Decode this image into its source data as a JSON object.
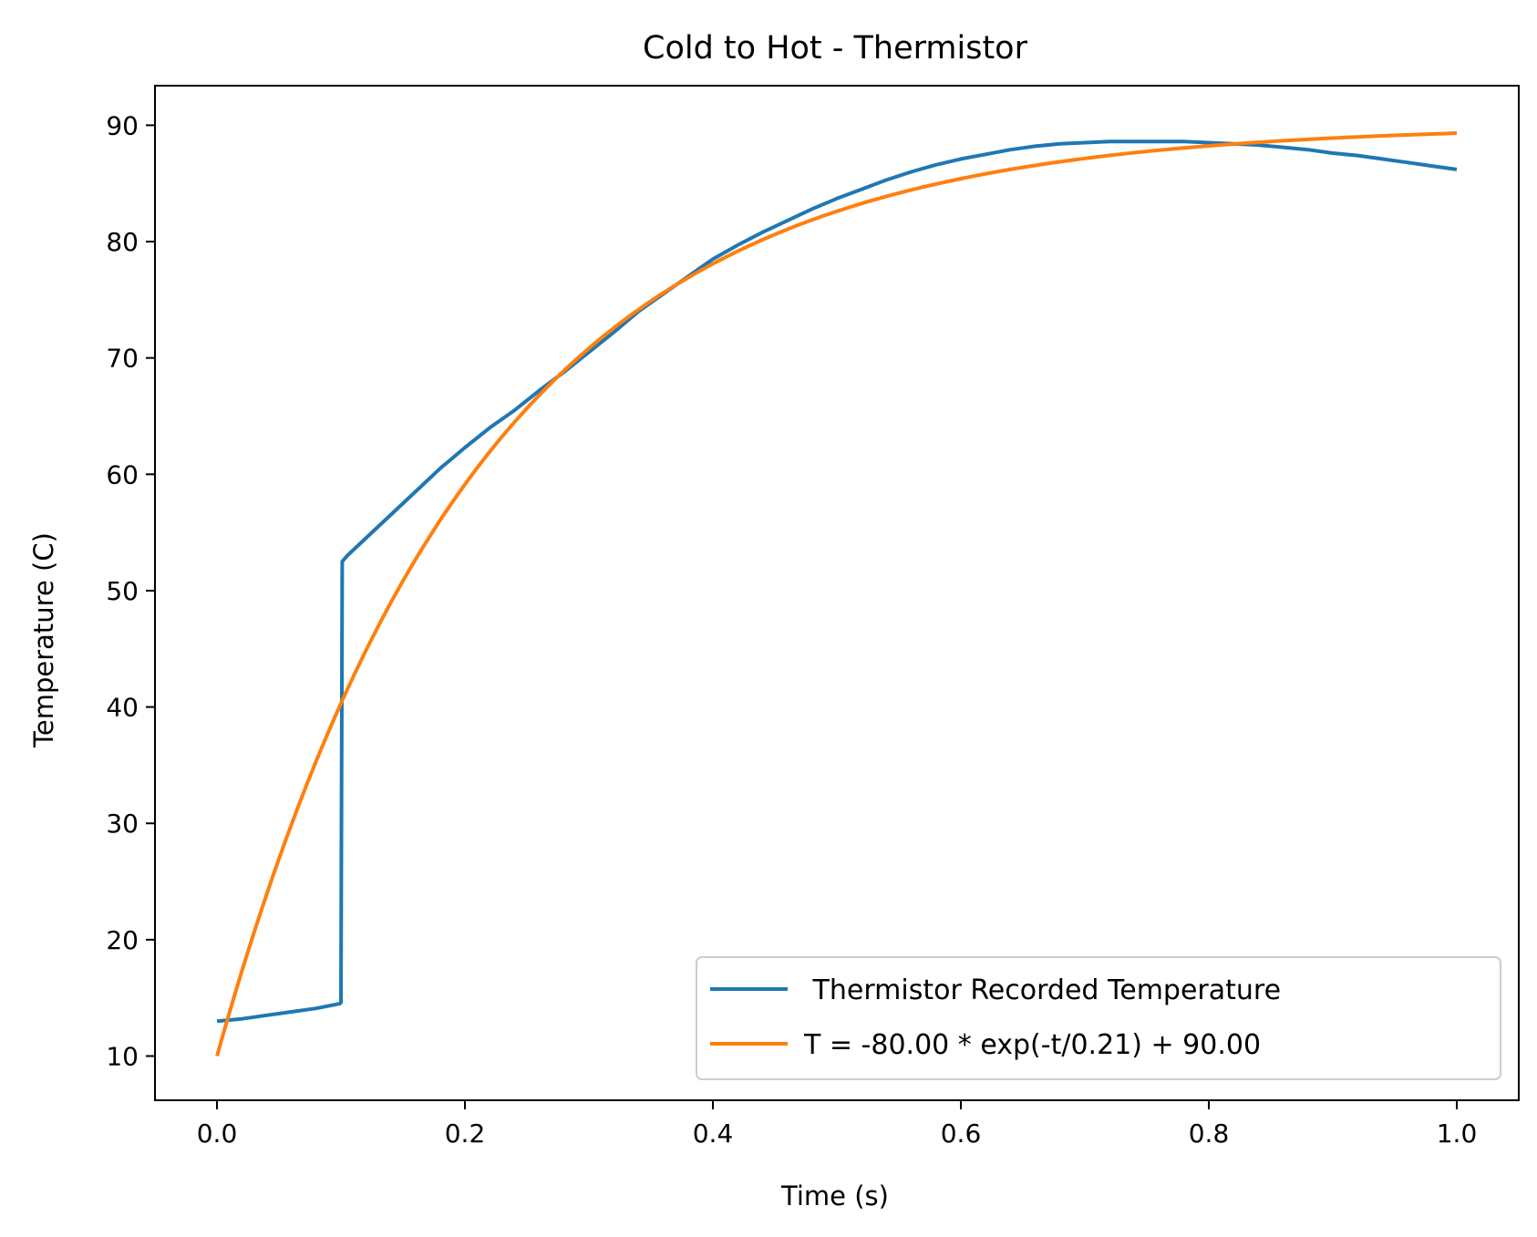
{
  "chart_data": {
    "type": "line",
    "title": "Cold to Hot - Thermistor",
    "xlabel": "Time (s)",
    "ylabel": "Temperature (C)",
    "xlim": [
      -0.05,
      1.05
    ],
    "ylim": [
      6.2,
      93.4
    ],
    "xticks": [
      0.0,
      0.2,
      0.4,
      0.6,
      0.8,
      1.0
    ],
    "xtick_labels": [
      "0.0",
      "0.2",
      "0.4",
      "0.6",
      "0.8",
      "1.0"
    ],
    "yticks": [
      10,
      20,
      30,
      40,
      50,
      60,
      70,
      80,
      90
    ],
    "ytick_labels": [
      "10",
      "20",
      "30",
      "40",
      "50",
      "60",
      "70",
      "80",
      "90"
    ],
    "grid": false,
    "legend_position": "lower-right",
    "series": [
      {
        "name": " Thermistor Recorded Temperature",
        "color": "#1f77b4",
        "x": [
          0.0,
          0.02,
          0.04,
          0.06,
          0.08,
          0.099,
          0.1,
          0.101,
          0.105,
          0.12,
          0.14,
          0.16,
          0.18,
          0.2,
          0.22,
          0.24,
          0.26,
          0.28,
          0.3,
          0.32,
          0.34,
          0.36,
          0.38,
          0.4,
          0.42,
          0.44,
          0.46,
          0.48,
          0.5,
          0.52,
          0.54,
          0.56,
          0.58,
          0.6,
          0.62,
          0.64,
          0.66,
          0.68,
          0.7,
          0.72,
          0.74,
          0.76,
          0.78,
          0.8,
          0.82,
          0.84,
          0.86,
          0.88,
          0.9,
          0.92,
          0.94,
          0.96,
          0.98,
          1.0
        ],
        "y": [
          13.0,
          13.2,
          13.5,
          13.8,
          14.1,
          14.5,
          14.6,
          52.5,
          53.0,
          54.5,
          56.5,
          58.5,
          60.5,
          62.3,
          64.0,
          65.5,
          67.2,
          68.8,
          70.5,
          72.2,
          74.0,
          75.5,
          77.0,
          78.5,
          79.7,
          80.8,
          81.8,
          82.8,
          83.7,
          84.5,
          85.3,
          86.0,
          86.6,
          87.1,
          87.5,
          87.9,
          88.2,
          88.4,
          88.5,
          88.6,
          88.6,
          88.6,
          88.6,
          88.5,
          88.4,
          88.3,
          88.1,
          87.9,
          87.6,
          87.4,
          87.1,
          86.8,
          86.5,
          86.2
        ]
      },
      {
        "name": "T = -80.00 * exp(-t/0.21) + 90.00",
        "color": "#ff7f0e",
        "function": {
          "a": -80.0,
          "tau": 0.21,
          "c": 90.0
        },
        "x_range": [
          0.0,
          1.0
        ]
      }
    ]
  }
}
